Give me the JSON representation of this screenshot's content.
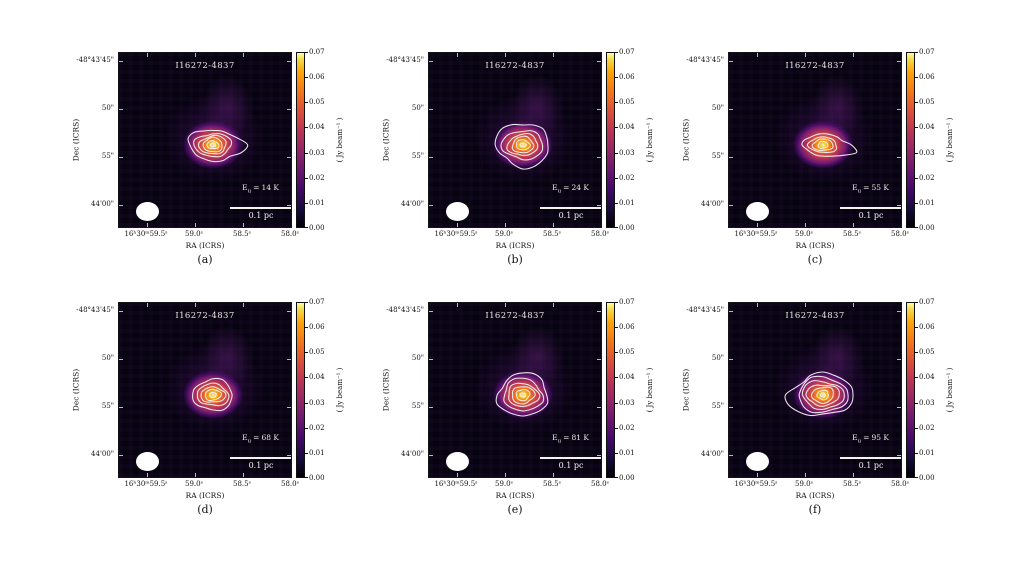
{
  "figure": {
    "source_name": "I16272-4837",
    "eu_base": "E",
    "eu_sub": "u",
    "eu_eq": "=",
    "scale_bar_label": "0.1 pc",
    "axes": {
      "x_label": "RA (ICRS)",
      "y_label": "Dec (ICRS)",
      "x_ticks": [
        "16ʰ30ᵐ59.5ˢ",
        "59.0ˢ",
        "58.5ˢ",
        "58.0ˢ"
      ],
      "y_ticks": [
        "-48°43'45\"",
        "50\"",
        "55\"",
        "44'00\""
      ]
    },
    "colorbar": {
      "label": "( Jy beam⁻¹ )",
      "ticks": [
        "0.07",
        "0.06",
        "0.05",
        "0.04",
        "0.03",
        "0.02",
        "0.01",
        "0.00"
      ]
    },
    "panels": [
      {
        "letter": "(a)",
        "eu_value": "14 K"
      },
      {
        "letter": "(b)",
        "eu_value": "24 K"
      },
      {
        "letter": "(c)",
        "eu_value": "55 K"
      },
      {
        "letter": "(d)",
        "eu_value": "68 K"
      },
      {
        "letter": "(e)",
        "eu_value": "81 K"
      },
      {
        "letter": "(f)",
        "eu_value": "95 K"
      }
    ]
  },
  "chart_data": {
    "type": "heatmap",
    "title": "I16272-4837",
    "xlabel": "RA (ICRS)",
    "ylabel": "Dec (ICRS)",
    "x_tick_labels": [
      "16h30m59.5s",
      "59.0s",
      "58.5s",
      "58.0s"
    ],
    "y_tick_labels": [
      "-48d43'45\"",
      "50\"",
      "55\"",
      "44'00\""
    ],
    "colorbar": {
      "label": "( Jy beam-1 )",
      "range": [
        0.0,
        0.07
      ],
      "ticks": [
        0.0,
        0.01,
        0.02,
        0.03,
        0.04,
        0.05,
        0.06,
        0.07
      ],
      "colormap": "inferno-like (black-purple-red-orange-yellow)"
    },
    "scale_bar": "0.1 pc",
    "contour_color": "white",
    "beam": "white filled ellipse, lower-left corner of each panel",
    "panels": [
      {
        "label": "(a)",
        "E_u_K": 14,
        "contour_radii": [
          [
            24,
            16
          ],
          [
            18,
            12
          ],
          [
            14,
            9
          ],
          [
            10,
            7
          ],
          [
            6,
            4
          ],
          [
            2.5,
            2
          ]
        ],
        "tail": true,
        "tail_angle": 0.15,
        "tail_amp": 0.45
      },
      {
        "label": "(b)",
        "E_u_K": 24,
        "contour_radii": [
          [
            27,
            22
          ],
          [
            20,
            15
          ],
          [
            15,
            11
          ],
          [
            11,
            8
          ],
          [
            7,
            5
          ],
          [
            3,
            2
          ]
        ],
        "tail": false,
        "tail_angle": 0,
        "tail_amp": 0
      },
      {
        "label": "(c)",
        "E_u_K": 55,
        "contour_radii": [
          [
            20,
            11
          ],
          [
            14,
            8
          ],
          [
            10,
            6
          ],
          [
            5,
            3.5
          ]
        ],
        "tail": true,
        "tail_angle": 0.3,
        "tail_amp": 0.95
      },
      {
        "label": "(d)",
        "E_u_K": 68,
        "contour_radii": [
          [
            21,
            15
          ],
          [
            16,
            11
          ],
          [
            12,
            8
          ],
          [
            8,
            5.5
          ],
          [
            3.5,
            2.5
          ]
        ],
        "tail": false,
        "tail_angle": 0,
        "tail_amp": 0
      },
      {
        "label": "(e)",
        "E_u_K": 81,
        "contour_radii": [
          [
            26,
            21
          ],
          [
            20,
            16
          ],
          [
            15,
            12
          ],
          [
            11,
            9
          ],
          [
            7,
            5.5
          ],
          [
            3,
            2
          ]
        ],
        "tail": false,
        "tail_angle": 0,
        "tail_amp": 0
      },
      {
        "label": "(f)",
        "E_u_K": 95,
        "contour_radii": [
          [
            31,
            21
          ],
          [
            26,
            17
          ],
          [
            21,
            14
          ],
          [
            16,
            11
          ],
          [
            11,
            8
          ],
          [
            6,
            4.5
          ],
          [
            2.5,
            2
          ]
        ],
        "tail": true,
        "tail_angle": 3.0,
        "tail_amp": 0.25
      }
    ],
    "peak_position": "bright compact core slightly right of and below panel center"
  }
}
